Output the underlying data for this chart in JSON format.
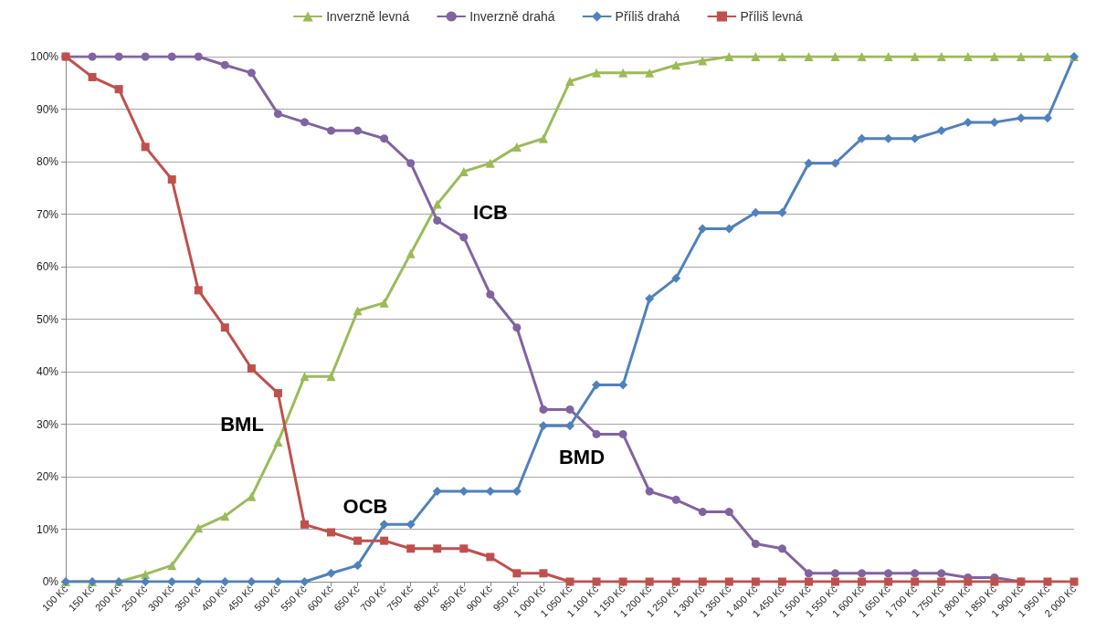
{
  "chart_data": {
    "type": "line",
    "categories": [
      "100 Kč",
      "150 Kč",
      "200 Kč",
      "250 Kč",
      "300 Kč",
      "350 Kč",
      "400 Kč",
      "450 Kč",
      "500 Kč",
      "550 Kč",
      "600 Kč",
      "650 Kč",
      "700 Kč",
      "750 Kč",
      "800 Kč",
      "850 Kč",
      "900 Kč",
      "950 Kč",
      "1 000 Kč",
      "1 050 Kč",
      "1 100 Kč",
      "1 150 Kč",
      "1 200 Kč",
      "1 250 Kč",
      "1 300 Kč",
      "1 350 Kč",
      "1 400 Kč",
      "1 450 Kč",
      "1 500 Kč",
      "1 550 Kč",
      "1 600 Kč",
      "1 650 Kč",
      "1 700 Kč",
      "1 750 Kč",
      "1 800 Kč",
      "1 850 Kč",
      "1 900 Kč",
      "1 950 Kč",
      "2 000 Kč"
    ],
    "series": [
      {
        "name": "Inverzně levná",
        "color": "#9bbb59",
        "marker": "triangle",
        "values": [
          0,
          0,
          0,
          1.4,
          3.1,
          10.2,
          12.5,
          16.2,
          26.6,
          39.1,
          39.1,
          51.6,
          53.1,
          62.5,
          71.9,
          78.1,
          79.7,
          82.8,
          84.4,
          95.3,
          96.9,
          96.9,
          96.9,
          98.4,
          99.2,
          100,
          100,
          100,
          100,
          100,
          100,
          100,
          100,
          100,
          100,
          100,
          100,
          100,
          100
        ]
      },
      {
        "name": "Inverzně drahá",
        "color": "#8064a2",
        "marker": "circle",
        "values": [
          100,
          100,
          100,
          100,
          100,
          100,
          98.4,
          96.9,
          89.1,
          87.5,
          85.9,
          85.9,
          84.4,
          79.7,
          68.8,
          65.6,
          54.7,
          48.4,
          32.8,
          32.8,
          28.1,
          28.1,
          17.2,
          15.6,
          13.3,
          13.3,
          7.2,
          6.3,
          1.6,
          1.6,
          1.6,
          1.6,
          1.6,
          1.6,
          0.8,
          0.8,
          0,
          null,
          null
        ]
      },
      {
        "name": "Příliš drahá",
        "color": "#4f81bd",
        "marker": "diamond",
        "values": [
          0,
          0,
          0,
          0,
          0,
          0,
          0,
          0,
          0,
          0,
          1.6,
          3.1,
          10.9,
          10.9,
          17.2,
          17.2,
          17.2,
          17.2,
          29.7,
          29.7,
          37.5,
          37.5,
          53.9,
          57.8,
          67.2,
          67.2,
          70.3,
          70.3,
          79.7,
          79.7,
          84.4,
          84.4,
          84.4,
          85.9,
          87.5,
          87.5,
          88.3,
          88.3,
          100
        ]
      },
      {
        "name": "Příliš levná",
        "color": "#c0504d",
        "marker": "square",
        "values": [
          100,
          96.1,
          93.8,
          82.8,
          76.6,
          55.5,
          48.4,
          40.6,
          35.9,
          10.9,
          9.4,
          7.8,
          7.8,
          6.3,
          6.3,
          6.3,
          4.7,
          1.6,
          1.6,
          0,
          0,
          0,
          0,
          0,
          0,
          0,
          0,
          0,
          0,
          0,
          0,
          0,
          0,
          0,
          0,
          0,
          0,
          0,
          0
        ]
      }
    ],
    "ylim": [
      0,
      100
    ],
    "yticks": [
      {
        "value": 0,
        "label": "0%"
      },
      {
        "value": 10,
        "label": "10%"
      },
      {
        "value": 20,
        "label": "20%"
      },
      {
        "value": 30,
        "label": "30%"
      },
      {
        "value": 40,
        "label": "40%"
      },
      {
        "value": 50,
        "label": "50%"
      },
      {
        "value": 60,
        "label": "60%"
      },
      {
        "value": 70,
        "label": "70%"
      },
      {
        "value": 80,
        "label": "80%"
      },
      {
        "value": 90,
        "label": "90%"
      },
      {
        "value": 100,
        "label": "100%"
      }
    ],
    "grid": "y",
    "legend": "top",
    "line_style": "solid",
    "annotations": [
      "BML",
      "ICB",
      "OCB",
      "BMD"
    ]
  }
}
